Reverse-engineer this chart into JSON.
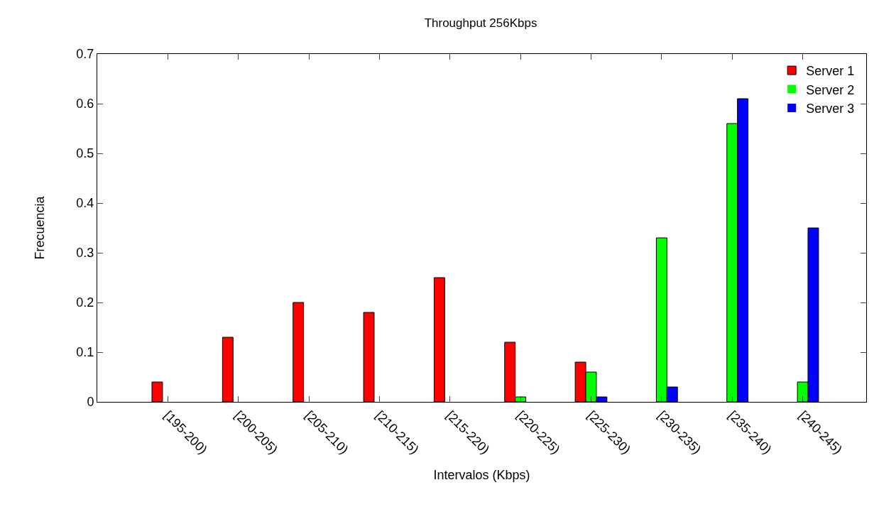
{
  "chart_data": {
    "type": "bar",
    "title": "Throughput 256Kbps",
    "xlabel": "Intervalos (Kbps)",
    "ylabel": "Frecuencia",
    "categories": [
      "[195-200)",
      "[200-205)",
      "[205-210)",
      "[210-215)",
      "[215-220)",
      "[220-225)",
      "[225-230)",
      "[230-235)",
      "[235-240)",
      "[240-245)"
    ],
    "series": [
      {
        "name": "Server 1",
        "color": "#ff0000",
        "values": [
          0.04,
          0.13,
          0.2,
          0.18,
          0.25,
          0.12,
          0.08,
          0,
          0,
          0
        ]
      },
      {
        "name": "Server 2",
        "color": "#00ff00",
        "values": [
          0,
          0,
          0,
          0,
          0,
          0.01,
          0.06,
          0.33,
          0.56,
          0.04
        ]
      },
      {
        "name": "Server 3",
        "color": "#0000ff",
        "values": [
          0,
          0,
          0,
          0,
          0,
          0,
          0.01,
          0.03,
          0.61,
          0.35
        ]
      }
    ],
    "ylim": [
      0,
      0.7
    ],
    "yticks": [
      0,
      0.1,
      0.2,
      0.3,
      0.4,
      0.5,
      0.6,
      0.7
    ],
    "legend": "top right"
  }
}
